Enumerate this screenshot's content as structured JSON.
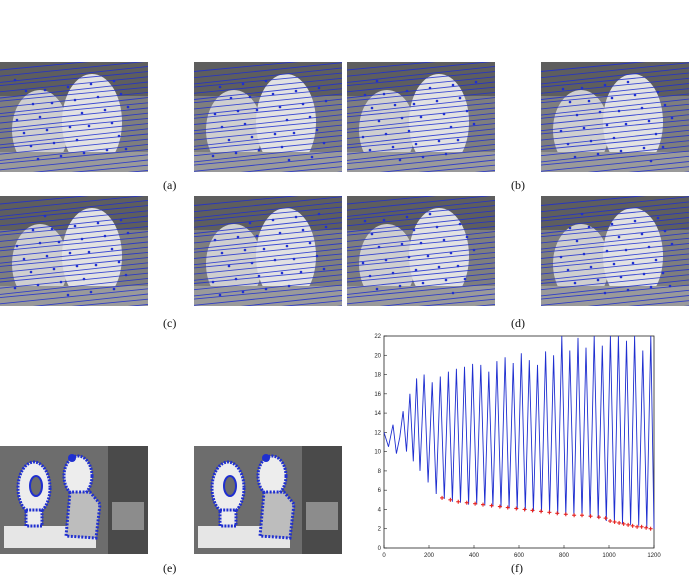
{
  "figure": {
    "captions": {
      "a": "(a)",
      "b": "(b)",
      "c": "(c)",
      "d": "(d)",
      "e": "(e)",
      "f": "(f)"
    },
    "photo_tone": "#7e7e7e",
    "line_color": "#1f2fd0",
    "marker_color": "#e8231e"
  },
  "chart_data": {
    "type": "line",
    "xlim": [
      0,
      1200
    ],
    "ylim": [
      0,
      22
    ],
    "xticks": [
      0,
      200,
      400,
      600,
      800,
      1000,
      1200
    ],
    "yticks": [
      0,
      2,
      4,
      6,
      8,
      10,
      12,
      14,
      16,
      18,
      20,
      22
    ],
    "series": [
      {
        "style": "blue-line",
        "x": [
          0,
          20,
          40,
          55,
          70,
          85,
          100,
          115,
          130,
          145,
          160,
          178,
          196,
          214,
          232,
          250,
          268,
          286,
          304,
          322,
          340,
          358,
          376,
          394,
          412,
          430,
          448,
          466,
          484,
          502,
          520,
          538,
          556,
          574,
          592,
          610,
          628,
          646,
          664,
          682,
          700,
          718,
          736,
          754,
          772,
          790,
          808,
          826,
          844,
          862,
          880,
          898,
          916,
          934,
          952,
          970,
          988,
          1006,
          1024,
          1042,
          1060,
          1078,
          1096,
          1114,
          1132,
          1150,
          1168,
          1186,
          1200
        ],
        "y": [
          12.0,
          10.5,
          12.8,
          9.8,
          11.5,
          14.2,
          10.0,
          16.0,
          9.0,
          17.6,
          8.0,
          18.0,
          6.8,
          17.2,
          5.6,
          17.8,
          5.1,
          18.3,
          4.8,
          18.6,
          4.7,
          18.8,
          4.5,
          19.1,
          4.5,
          19.0,
          4.4,
          18.3,
          4.3,
          19.4,
          4.2,
          19.8,
          4.1,
          19.2,
          4.0,
          20.2,
          3.9,
          19.5,
          3.8,
          19.0,
          3.7,
          20.4,
          3.6,
          20.0,
          3.5,
          22.0,
          3.4,
          20.5,
          3.4,
          21.8,
          3.3,
          20.8,
          3.2,
          22.5,
          3.1,
          21.0,
          2.8,
          22.0,
          2.6,
          23.0,
          2.5,
          21.5,
          2.4,
          22.8,
          2.3,
          20.5,
          2.1,
          23.0,
          2.0
        ]
      },
      {
        "style": "red-markers",
        "x": [
          258,
          295,
          330,
          368,
          405,
          440,
          478,
          515,
          550,
          588,
          625,
          660,
          698,
          735,
          770,
          808,
          845,
          880,
          918,
          955,
          985,
          1005,
          1025,
          1045,
          1065,
          1085,
          1105,
          1125,
          1145,
          1165,
          1185
        ],
        "y": [
          5.2,
          5.0,
          4.8,
          4.7,
          4.6,
          4.5,
          4.4,
          4.3,
          4.2,
          4.1,
          4.0,
          3.9,
          3.8,
          3.7,
          3.6,
          3.5,
          3.4,
          3.4,
          3.3,
          3.2,
          3.1,
          2.8,
          2.7,
          2.6,
          2.5,
          2.4,
          2.3,
          2.2,
          2.2,
          2.1,
          2.0
        ]
      }
    ]
  }
}
